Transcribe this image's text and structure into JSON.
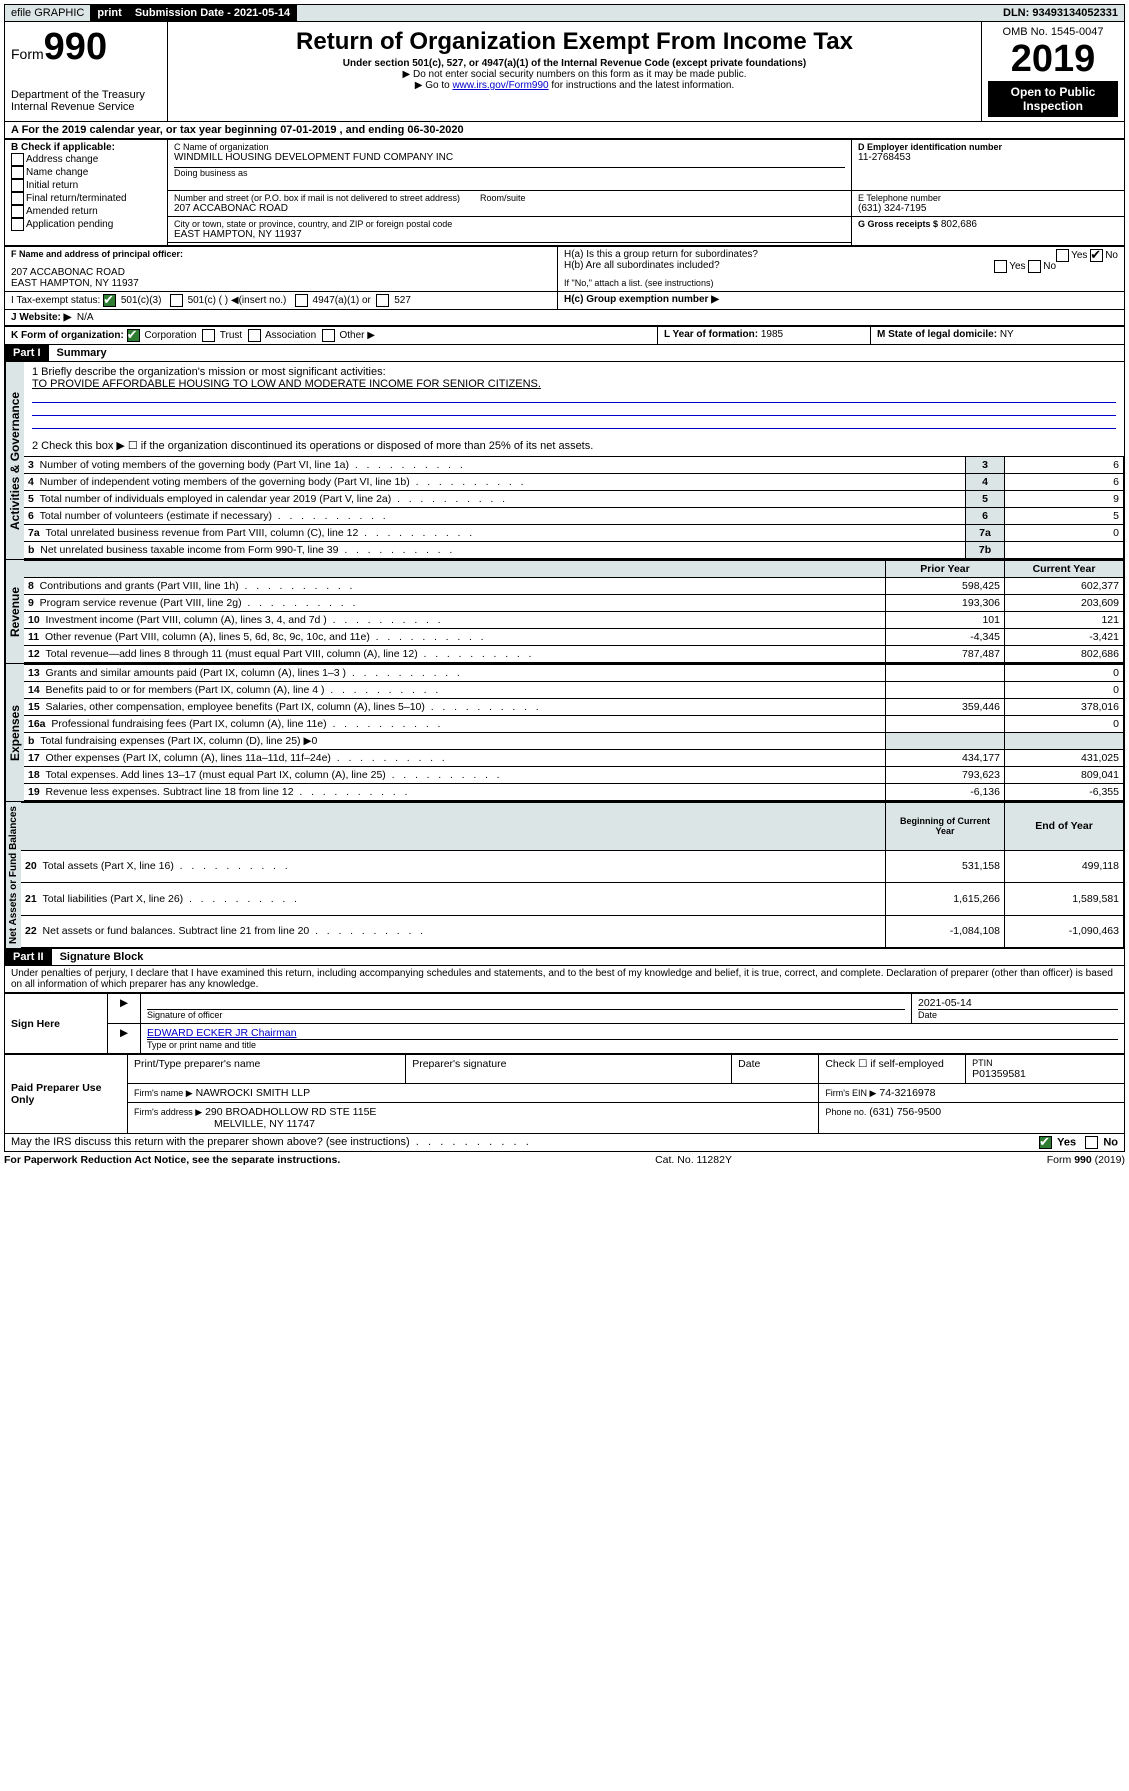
{
  "topbar": {
    "efile": "efile GRAPHIC",
    "print": "print",
    "submission_label": "Submission Date - 2021-05-14",
    "dln": "DLN: 93493134052331"
  },
  "header": {
    "form_prefix": "Form",
    "form_no": "990",
    "dept": "Department of the Treasury\nInternal Revenue Service",
    "title": "Return of Organization Exempt From Income Tax",
    "sub": "Under section 501(c), 527, or 4947(a)(1) of the Internal Revenue Code (except private foundations)",
    "note1": "▶ Do not enter social security numbers on this form as it may be made public.",
    "note2_pre": "▶ Go to ",
    "note2_link": "www.irs.gov/Form990",
    "note2_post": " for instructions and the latest information.",
    "omb": "OMB No. 1545-0047",
    "year": "2019",
    "open": "Open to Public Inspection"
  },
  "periodA": "A For the 2019 calendar year, or tax year beginning 07-01-2019   , and ending 06-30-2020",
  "boxB": {
    "header": "B Check if applicable:",
    "items": [
      "Address change",
      "Name change",
      "Initial return",
      "Final return/terminated",
      "Amended return",
      "Application pending"
    ]
  },
  "boxC": {
    "name_label": "C Name of organization",
    "name": "WINDMILL HOUSING DEVELOPMENT FUND COMPANY INC",
    "dba_label": "Doing business as",
    "addr_label": "Number and street (or P.O. box if mail is not delivered to street address)",
    "room_label": "Room/suite",
    "addr": "207 ACCABONAC ROAD",
    "city_label": "City or town, state or province, country, and ZIP or foreign postal code",
    "city": "EAST HAMPTON, NY  11937"
  },
  "boxD": {
    "label": "D Employer identification number",
    "value": "11-2768453"
  },
  "boxE": {
    "label": "E Telephone number",
    "value": "(631) 324-7195"
  },
  "boxG": {
    "label": "G Gross receipts $",
    "value": "802,686"
  },
  "boxF": {
    "label": "F Name and address of principal officer:",
    "addr1": "207 ACCABONAC ROAD",
    "addr2": "EAST HAMPTON, NY  11937"
  },
  "boxH": {
    "a": "H(a)  Is this a group return for subordinates?",
    "b": "H(b)  Are all subordinates included?",
    "b_note": "If \"No,\" attach a list. (see instructions)",
    "c": "H(c)  Group exemption number ▶",
    "yes": "Yes",
    "no": "No"
  },
  "boxI": {
    "label": "I   Tax-exempt status:",
    "opt1": "501(c)(3)",
    "opt2": "501(c) (   ) ◀(insert no.)",
    "opt3": "4947(a)(1) or",
    "opt4": "527"
  },
  "boxJ": {
    "label": "J   Website: ▶",
    "value": "N/A"
  },
  "boxK": {
    "label": "K Form of organization:",
    "o1": "Corporation",
    "o2": "Trust",
    "o3": "Association",
    "o4": "Other ▶"
  },
  "boxL": {
    "label": "L Year of formation:",
    "value": "1985"
  },
  "boxM": {
    "label": "M State of legal domicile:",
    "value": "NY"
  },
  "part1": {
    "tag": "Part I",
    "title": "Summary",
    "line1_label": "1  Briefly describe the organization's mission or most significant activities:",
    "line1_text": "TO PROVIDE AFFORDABLE HOUSING TO LOW AND MODERATE INCOME FOR SENIOR CITIZENS.",
    "line2": "2   Check this box ▶ ☐  if the organization discontinued its operations or disposed of more than 25% of its net assets."
  },
  "gov_rows": [
    {
      "n": "3",
      "desc": "Number of voting members of the governing body (Part VI, line 1a)",
      "box": "3",
      "val": "6"
    },
    {
      "n": "4",
      "desc": "Number of independent voting members of the governing body (Part VI, line 1b)",
      "box": "4",
      "val": "6"
    },
    {
      "n": "5",
      "desc": "Total number of individuals employed in calendar year 2019 (Part V, line 2a)",
      "box": "5",
      "val": "9"
    },
    {
      "n": "6",
      "desc": "Total number of volunteers (estimate if necessary)",
      "box": "6",
      "val": "5"
    },
    {
      "n": "7a",
      "desc": "Total unrelated business revenue from Part VIII, column (C), line 12",
      "box": "7a",
      "val": "0"
    },
    {
      "n": "b",
      "desc": "Net unrelated business taxable income from Form 990-T, line 39",
      "box": "7b",
      "val": ""
    }
  ],
  "rev_header": {
    "prior": "Prior Year",
    "current": "Current Year"
  },
  "rev_rows": [
    {
      "n": "8",
      "desc": "Contributions and grants (Part VIII, line 1h)",
      "p": "598,425",
      "c": "602,377"
    },
    {
      "n": "9",
      "desc": "Program service revenue (Part VIII, line 2g)",
      "p": "193,306",
      "c": "203,609"
    },
    {
      "n": "10",
      "desc": "Investment income (Part VIII, column (A), lines 3, 4, and 7d )",
      "p": "101",
      "c": "121"
    },
    {
      "n": "11",
      "desc": "Other revenue (Part VIII, column (A), lines 5, 6d, 8c, 9c, 10c, and 11e)",
      "p": "-4,345",
      "c": "-3,421"
    },
    {
      "n": "12",
      "desc": "Total revenue—add lines 8 through 11 (must equal Part VIII, column (A), line 12)",
      "p": "787,487",
      "c": "802,686"
    }
  ],
  "exp_rows": [
    {
      "n": "13",
      "desc": "Grants and similar amounts paid (Part IX, column (A), lines 1–3 )",
      "p": "",
      "c": "0"
    },
    {
      "n": "14",
      "desc": "Benefits paid to or for members (Part IX, column (A), line 4 )",
      "p": "",
      "c": "0"
    },
    {
      "n": "15",
      "desc": "Salaries, other compensation, employee benefits (Part IX, column (A), lines 5–10)",
      "p": "359,446",
      "c": "378,016"
    },
    {
      "n": "16a",
      "desc": "Professional fundraising fees (Part IX, column (A), line 11e)",
      "p": "",
      "c": "0"
    },
    {
      "n": "b",
      "desc": "Total fundraising expenses (Part IX, column (D), line 25) ▶0",
      "p": "—",
      "c": "—"
    },
    {
      "n": "17",
      "desc": "Other expenses (Part IX, column (A), lines 11a–11d, 11f–24e)",
      "p": "434,177",
      "c": "431,025"
    },
    {
      "n": "18",
      "desc": "Total expenses. Add lines 13–17 (must equal Part IX, column (A), line 25)",
      "p": "793,623",
      "c": "809,041"
    },
    {
      "n": "19",
      "desc": "Revenue less expenses. Subtract line 18 from line 12",
      "p": "-6,136",
      "c": "-6,355"
    }
  ],
  "net_header": {
    "prior": "Beginning of Current Year",
    "current": "End of Year"
  },
  "net_rows": [
    {
      "n": "20",
      "desc": "Total assets (Part X, line 16)",
      "p": "531,158",
      "c": "499,118"
    },
    {
      "n": "21",
      "desc": "Total liabilities (Part X, line 26)",
      "p": "1,615,266",
      "c": "1,589,581"
    },
    {
      "n": "22",
      "desc": "Net assets or fund balances. Subtract line 21 from line 20",
      "p": "-1,084,108",
      "c": "-1,090,463"
    }
  ],
  "vtabs": {
    "gov": "Activities & Governance",
    "rev": "Revenue",
    "exp": "Expenses",
    "net": "Net Assets or Fund Balances"
  },
  "part2": {
    "tag": "Part II",
    "title": "Signature Block",
    "perjury": "Under penalties of perjury, I declare that I have examined this return, including accompanying schedules and statements, and to the best of my knowledge and belief, it is true, correct, and complete. Declaration of preparer (other than officer) is based on all information of which preparer has any knowledge."
  },
  "sign": {
    "here": "Sign Here",
    "sig_label": "Signature of officer",
    "date": "2021-05-14",
    "date_label": "Date",
    "name": "EDWARD ECKER JR Chairman",
    "name_label": "Type or print name and title"
  },
  "paid": {
    "title": "Paid Preparer Use Only",
    "h1": "Print/Type preparer's name",
    "h2": "Preparer's signature",
    "h3": "Date",
    "h4_a": "Check ☐ if self-employed",
    "h4_b": "PTIN",
    "ptin": "P01359581",
    "firm_label": "Firm's name    ▶",
    "firm": "NAWROCKI SMITH LLP",
    "ein_label": "Firm's EIN ▶",
    "ein": "74-3216978",
    "addr_label": "Firm's address ▶",
    "addr1": "290 BROADHOLLOW RD STE 115E",
    "addr2": "MELVILLE, NY  11747",
    "phone_label": "Phone no.",
    "phone": "(631) 756-9500"
  },
  "footer": {
    "discuss": "May the IRS discuss this return with the preparer shown above? (see instructions)",
    "yes": "Yes",
    "no": "No",
    "pra": "For Paperwork Reduction Act Notice, see the separate instructions.",
    "cat": "Cat. No. 11282Y",
    "form": "Form 990 (2019)"
  },
  "colors": {
    "header_bg": "#dce5e5",
    "link": "#0000cc",
    "check_green": "#2e7d32"
  }
}
